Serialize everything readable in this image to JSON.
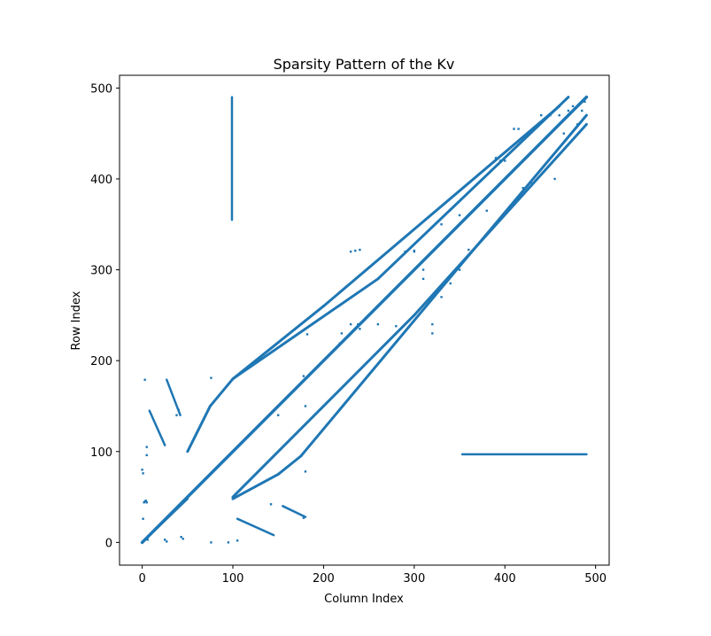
{
  "chart_data": {
    "type": "scatter",
    "title": "Sparsity Pattern of the Kv",
    "xlabel": "Column Index",
    "ylabel": "Row Index",
    "xlim": [
      -25,
      515
    ],
    "ylim": [
      514,
      -25
    ],
    "x_ticks": [
      0,
      100,
      200,
      300,
      400,
      500
    ],
    "x_tick_labels": [
      "0",
      "100",
      "200",
      "300",
      "400",
      "500"
    ],
    "y_ticks": [
      0,
      100,
      200,
      300,
      400,
      500
    ],
    "y_tick_labels": [
      "0",
      "100",
      "200",
      "300",
      "400",
      "500"
    ],
    "grid": false,
    "marker_color": "#1f77b4",
    "matrix_size": 490,
    "series": [
      {
        "kind": "diagonal",
        "x": [
          0,
          490
        ],
        "y": [
          0,
          490
        ]
      },
      {
        "kind": "band",
        "x": [
          100,
          300,
          490
        ],
        "y": [
          50,
          250,
          460
        ]
      },
      {
        "kind": "band",
        "x": [
          100,
          150,
          175,
          330,
          490
        ],
        "y": [
          48,
          75,
          95,
          280,
          470
        ]
      },
      {
        "kind": "band",
        "x": [
          50,
          75,
          100,
          260,
          470
        ],
        "y": [
          100,
          150,
          180,
          290,
          490
        ]
      },
      {
        "kind": "band",
        "x": [
          100,
          200,
          460
        ],
        "y": [
          180,
          260,
          480
        ]
      },
      {
        "kind": "segment",
        "x": [
          105,
          145
        ],
        "y": [
          26,
          8
        ]
      },
      {
        "kind": "segment",
        "x": [
          155,
          180
        ],
        "y": [
          40,
          28
        ]
      },
      {
        "kind": "segment",
        "x": [
          8,
          25
        ],
        "y": [
          145,
          107
        ]
      },
      {
        "kind": "segment",
        "x": [
          27,
          42
        ],
        "y": [
          179,
          140
        ]
      },
      {
        "kind": "segment",
        "x": [
          0,
          50
        ],
        "y": [
          0,
          48
        ]
      },
      {
        "kind": "segment",
        "x": [
          353,
          490
        ],
        "y": [
          97,
          97
        ]
      },
      {
        "kind": "segment",
        "x": [
          99,
          99
        ],
        "y": [
          355,
          490
        ]
      },
      {
        "kind": "points",
        "x": [
          1,
          2,
          4,
          5,
          5,
          6,
          25,
          27,
          43,
          45,
          76,
          95,
          105,
          142,
          178,
          180,
          3,
          1,
          0,
          3,
          5,
          38,
          40,
          76,
          150,
          180,
          178,
          182,
          215,
          218,
          220,
          230,
          240,
          260,
          280,
          290,
          300,
          310,
          320,
          320,
          330,
          340,
          350,
          355,
          360,
          370,
          380,
          390,
          395,
          400,
          410,
          415,
          420,
          430,
          440,
          450,
          455,
          460,
          465,
          470,
          475,
          480,
          485,
          488,
          490,
          300,
          310,
          320,
          330,
          340,
          350,
          230,
          235,
          238,
          240
        ],
        "y": [
          26,
          44,
          46,
          96,
          105,
          3,
          3,
          1,
          6,
          4,
          0,
          0,
          2,
          42,
          27,
          78,
          179,
          76,
          80,
          45,
          44,
          140,
          146,
          181,
          140,
          150,
          183,
          229,
          215,
          219,
          230,
          240,
          235,
          240,
          238,
          320,
          321,
          290,
          230,
          240,
          270,
          285,
          300,
          310,
          322,
          370,
          365,
          423,
          420,
          420,
          455,
          455,
          390,
          395,
          470,
          470,
          400,
          470,
          450,
          475,
          480,
          460,
          475,
          485,
          490,
          320,
          300,
          320,
          350,
          366,
          360,
          320,
          321,
          240,
          322
        ]
      }
    ]
  }
}
